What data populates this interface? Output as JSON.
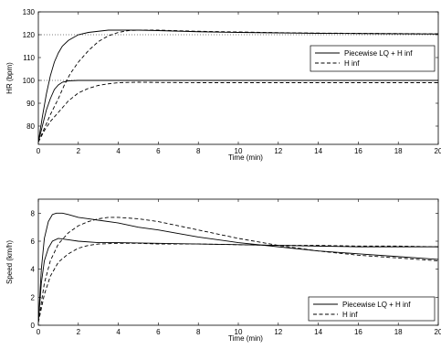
{
  "chart_data": [
    {
      "type": "line",
      "title": "",
      "xlabel": "Time (min)",
      "ylabel": "HR (bpm)",
      "xlim": [
        0,
        20
      ],
      "ylim": [
        72,
        130
      ],
      "xticks": [
        0,
        2,
        4,
        6,
        8,
        10,
        12,
        14,
        16,
        18,
        20
      ],
      "yticks": [
        80,
        90,
        100,
        110,
        120,
        130
      ],
      "grid": false,
      "legend": "right",
      "reference_lines": [
        {
          "y": 100,
          "style": "dotted"
        },
        {
          "y": 120,
          "style": "dotted"
        }
      ],
      "series": [
        {
          "name": "Piecewise LQ + H inf",
          "style": "solid",
          "x": [
            0,
            0.2,
            0.4,
            0.6,
            0.8,
            1,
            1.2,
            1.5,
            1.8,
            2,
            2.5,
            3,
            3.5,
            4,
            4.5,
            5,
            6,
            8,
            10,
            12,
            14,
            16,
            18,
            20
          ],
          "y": [
            73,
            84,
            94,
            102,
            108,
            112,
            115,
            117.5,
            119,
            120,
            121,
            121.5,
            122,
            122,
            122,
            122,
            121.8,
            121.3,
            121,
            120.8,
            120.6,
            120.5,
            120.4,
            120.3
          ]
        },
        {
          "name": "H inf",
          "style": "dashed",
          "x": [
            0,
            0.3,
            0.6,
            1,
            1.3,
            1.6,
            2,
            2.5,
            3,
            3.5,
            4,
            4.5,
            5,
            6,
            8,
            10,
            12,
            14,
            16,
            18,
            20
          ],
          "y": [
            73,
            79,
            85,
            92,
            98,
            103,
            108,
            113,
            117,
            119.5,
            121,
            121.8,
            122,
            122,
            121.5,
            121.2,
            120.9,
            120.7,
            120.6,
            120.5,
            120.4
          ]
        },
        {
          "name": "",
          "style": "solid",
          "x": [
            0,
            0.2,
            0.4,
            0.6,
            0.8,
            1,
            1.2,
            1.5,
            2,
            3,
            4,
            6,
            8,
            10,
            12,
            14,
            16,
            18,
            20
          ],
          "y": [
            73,
            80,
            87,
            92,
            96,
            98,
            99.2,
            99.8,
            100,
            100,
            100,
            100,
            100,
            100,
            100,
            100,
            100,
            100,
            100
          ]
        },
        {
          "name": "",
          "style": "dashed",
          "x": [
            0,
            0.3,
            0.6,
            1,
            1.5,
            2,
            2.5,
            3,
            3.5,
            4,
            5,
            6,
            8,
            10,
            12,
            14,
            16,
            18,
            20
          ],
          "y": [
            73,
            78,
            82,
            86,
            91,
            94.5,
            96.5,
            97.8,
            98.5,
            99,
            99.2,
            99.1,
            99,
            99,
            99,
            99,
            99,
            99,
            99
          ]
        }
      ],
      "legend_entries": [
        {
          "label": "Piecewise LQ + H inf",
          "style": "solid"
        },
        {
          "label": "H inf",
          "style": "dashed"
        }
      ]
    },
    {
      "type": "line",
      "title": "",
      "xlabel": "Time (min)",
      "ylabel": "Speed (km/h)",
      "xlim": [
        0,
        20
      ],
      "ylim": [
        0,
        9
      ],
      "xticks": [
        0,
        2,
        4,
        6,
        8,
        10,
        12,
        14,
        16,
        18,
        20
      ],
      "yticks": [
        0,
        2,
        4,
        6,
        8
      ],
      "grid": false,
      "legend": "bottom-right",
      "series": [
        {
          "name": "Piecewise LQ + H inf",
          "style": "solid",
          "x": [
            0,
            0.15,
            0.3,
            0.5,
            0.7,
            0.9,
            1.2,
            1.5,
            2,
            2.5,
            3,
            4,
            5,
            6,
            8,
            10,
            12,
            14,
            16,
            18,
            20
          ],
          "y": [
            0.2,
            4,
            6.2,
            7.4,
            7.9,
            8,
            8,
            7.9,
            7.7,
            7.6,
            7.5,
            7.3,
            7,
            6.8,
            6.3,
            5.9,
            5.6,
            5.3,
            5.1,
            4.9,
            4.7
          ]
        },
        {
          "name": "H inf",
          "style": "dashed",
          "x": [
            0,
            0.3,
            0.6,
            1,
            1.5,
            2,
            2.5,
            3,
            3.5,
            4,
            5,
            6,
            8,
            10,
            12,
            14,
            16,
            18,
            20
          ],
          "y": [
            0.2,
            3,
            4.6,
            5.8,
            6.6,
            7.1,
            7.4,
            7.6,
            7.7,
            7.7,
            7.6,
            7.4,
            6.8,
            6.2,
            5.7,
            5.3,
            5,
            4.8,
            4.6
          ]
        },
        {
          "name": "",
          "style": "solid",
          "x": [
            0,
            0.15,
            0.3,
            0.5,
            0.7,
            1,
            1.5,
            2,
            3,
            4,
            6,
            8,
            10,
            12,
            14,
            16,
            18,
            20
          ],
          "y": [
            0.2,
            3,
            4.6,
            5.5,
            6,
            6.2,
            6.1,
            6,
            5.9,
            5.9,
            5.85,
            5.8,
            5.75,
            5.7,
            5.65,
            5.6,
            5.6,
            5.6
          ]
        },
        {
          "name": "",
          "style": "dashed",
          "x": [
            0,
            0.3,
            0.6,
            1,
            1.5,
            2,
            2.5,
            3,
            4,
            5,
            6,
            8,
            10,
            12,
            14,
            16,
            18,
            20
          ],
          "y": [
            0.2,
            2.2,
            3.5,
            4.5,
            5.1,
            5.5,
            5.7,
            5.8,
            5.85,
            5.85,
            5.8,
            5.8,
            5.75,
            5.7,
            5.7,
            5.65,
            5.65,
            5.6
          ]
        }
      ],
      "legend_entries": [
        {
          "label": "Piecewise LQ + H inf",
          "style": "solid"
        },
        {
          "label": "H inf",
          "style": "dashed"
        }
      ]
    }
  ]
}
